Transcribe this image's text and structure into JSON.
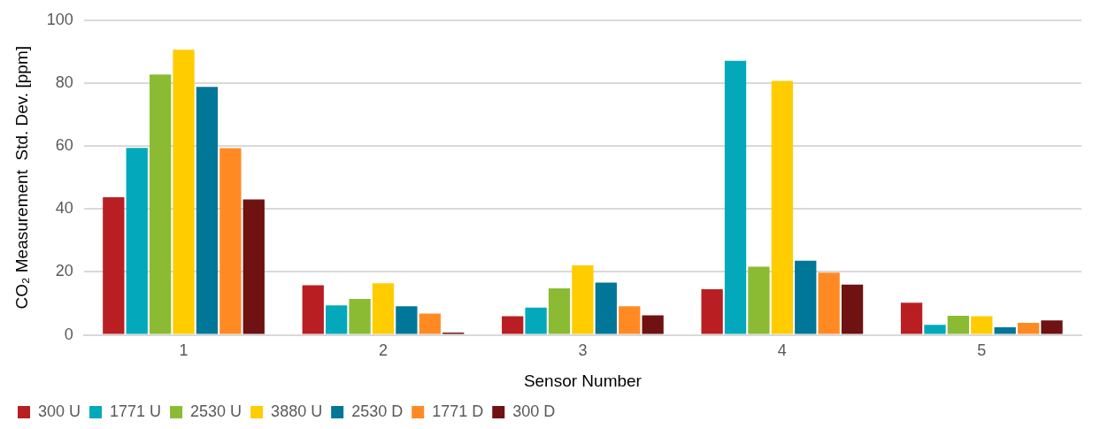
{
  "chart_data": {
    "type": "bar",
    "xlabel": "Sensor Number",
    "ylabel": "CO₂ Measurement  Std. Dev. [ppm]",
    "categories": [
      "1",
      "2",
      "3",
      "4",
      "5"
    ],
    "series": [
      {
        "name": "300 U",
        "color": "#b91f22",
        "values": [
          43.7,
          15.8,
          5.9,
          14.5,
          10.2
        ]
      },
      {
        "name": "1771 U",
        "color": "#03a9bb",
        "values": [
          59.4,
          9.4,
          8.7,
          87.1,
          3.2
        ]
      },
      {
        "name": "2530 U",
        "color": "#8bbb33",
        "values": [
          82.7,
          11.4,
          14.8,
          21.7,
          6.1
        ]
      },
      {
        "name": "3880 U",
        "color": "#ffcc00",
        "values": [
          90.6,
          16.4,
          22.1,
          80.7,
          5.9
        ]
      },
      {
        "name": "2530 D",
        "color": "#007799",
        "values": [
          78.8,
          9.1,
          16.6,
          23.6,
          2.4
        ]
      },
      {
        "name": "1771 D",
        "color": "#ff8a24",
        "values": [
          59.3,
          6.8,
          9.1,
          19.8,
          3.8
        ]
      },
      {
        "name": "300 D",
        "color": "#701112",
        "values": [
          43.0,
          0.7,
          6.2,
          16.0,
          4.6
        ]
      }
    ],
    "ylim": [
      0,
      100
    ],
    "yticks": [
      0,
      20,
      40,
      60,
      80,
      100
    ],
    "grid": "y",
    "legend": "bottom left"
  }
}
